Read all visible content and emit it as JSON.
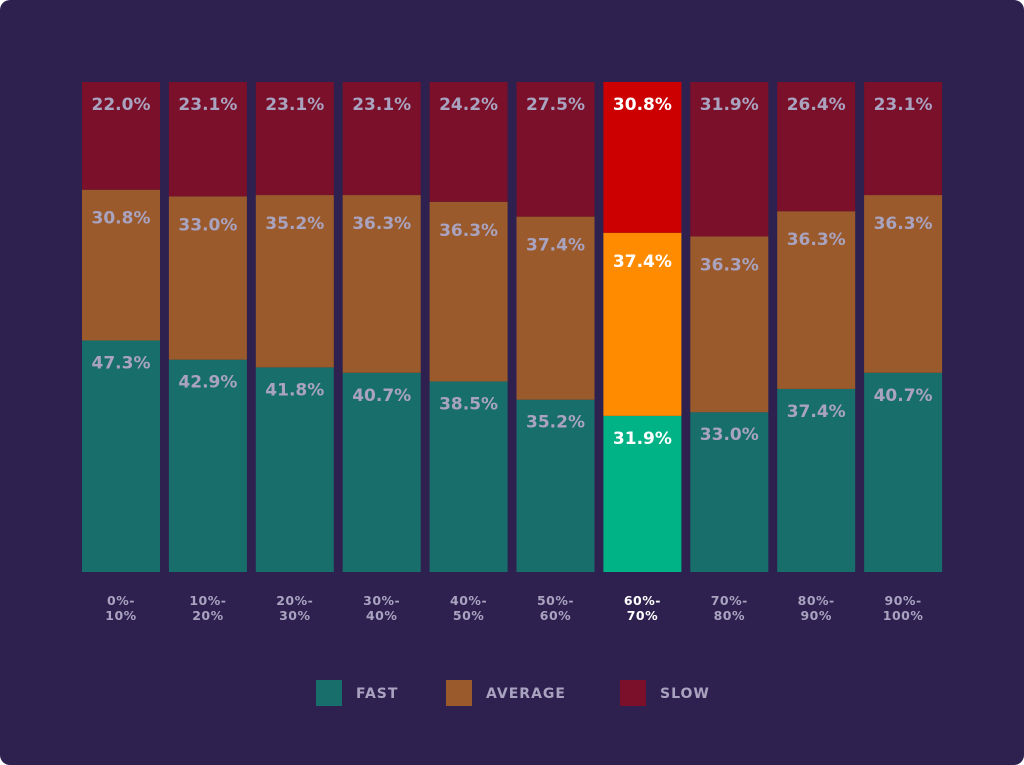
{
  "chart_data": {
    "type": "bar",
    "stacked": true,
    "normalized": true,
    "categories": [
      [
        "0%-",
        "10%"
      ],
      [
        "10%-",
        "20%"
      ],
      [
        "20%-",
        "30%"
      ],
      [
        "30%-",
        "40%"
      ],
      [
        "40%-",
        "50%"
      ],
      [
        "50%-",
        "60%"
      ],
      [
        "60%-",
        "70%"
      ],
      [
        "70%-",
        "80%"
      ],
      [
        "80%-",
        "90%"
      ],
      [
        "90%-",
        "100%"
      ]
    ],
    "highlighted_category_index": 6,
    "series": [
      {
        "name": "FAST",
        "color": "#186e6a",
        "highlight_color": "#00b386",
        "values": [
          47.3,
          42.9,
          41.8,
          40.7,
          38.5,
          35.2,
          31.9,
          33.0,
          37.4,
          40.7
        ]
      },
      {
        "name": "AVERAGE",
        "color": "#9a5a2b",
        "highlight_color": "#ff8c00",
        "values": [
          30.8,
          33.0,
          35.2,
          36.3,
          36.3,
          37.4,
          37.4,
          36.3,
          36.3,
          36.3
        ]
      },
      {
        "name": "SLOW",
        "color": "#7a1029",
        "highlight_color": "#cc0000",
        "values": [
          22.0,
          23.1,
          23.1,
          23.1,
          24.2,
          27.5,
          30.8,
          31.9,
          26.4,
          23.1
        ]
      }
    ],
    "ylim": [
      0,
      100
    ],
    "legend_position": "bottom",
    "grid": false,
    "colors": {
      "background": "#2e2150",
      "label": "#a9a3c0",
      "highlight_label": "#ffffff"
    }
  }
}
